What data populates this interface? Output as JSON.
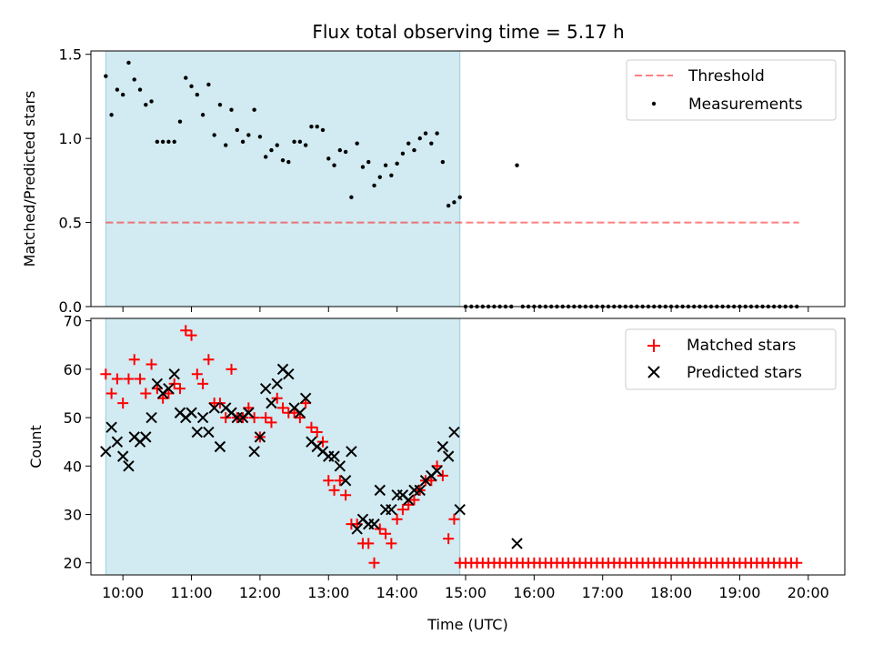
{
  "title": "Flux total observing time = 5.17 h",
  "colors": {
    "shade": "#add8e6",
    "threshold": "#ff0000",
    "measurement": "#000000",
    "matched": "#ff0000",
    "predicted": "#000000"
  },
  "chart_data": [
    {
      "type": "scatter",
      "ylabel": "Matched/Predicted stars",
      "ylim": [
        0,
        1.52
      ],
      "xlim": [
        "09:32",
        "20:32"
      ],
      "yticks": [
        "0.0",
        "0.5",
        "1.0",
        "1.5"
      ],
      "shaded_interval": [
        "09:45",
        "14:55"
      ],
      "legend": "top-right",
      "threshold": {
        "name": "Threshold",
        "value": 0.5,
        "x_range": [
          "09:45",
          "19:52"
        ]
      },
      "series": [
        {
          "name": "Measurements",
          "points": [
            [
              "09:45",
              1.37
            ],
            [
              "09:50",
              1.14
            ],
            [
              "09:55",
              1.29
            ],
            [
              "10:00",
              1.26
            ],
            [
              "10:05",
              1.45
            ],
            [
              "10:10",
              1.35
            ],
            [
              "10:15",
              1.29
            ],
            [
              "10:20",
              1.2
            ],
            [
              "10:25",
              1.22
            ],
            [
              "10:30",
              0.98
            ],
            [
              "10:35",
              0.98
            ],
            [
              "10:40",
              0.98
            ],
            [
              "10:45",
              0.98
            ],
            [
              "10:50",
              1.1
            ],
            [
              "10:55",
              1.36
            ],
            [
              "11:00",
              1.31
            ],
            [
              "11:05",
              1.26
            ],
            [
              "11:10",
              1.14
            ],
            [
              "11:15",
              1.32
            ],
            [
              "11:20",
              1.02
            ],
            [
              "11:25",
              1.2
            ],
            [
              "11:30",
              0.96
            ],
            [
              "11:35",
              1.17
            ],
            [
              "11:40",
              1.05
            ],
            [
              "11:45",
              0.98
            ],
            [
              "11:50",
              1.02
            ],
            [
              "11:55",
              1.17
            ],
            [
              "12:00",
              1.01
            ],
            [
              "12:05",
              0.89
            ],
            [
              "12:10",
              0.93
            ],
            [
              "12:15",
              0.96
            ],
            [
              "12:20",
              0.87
            ],
            [
              "12:25",
              0.86
            ],
            [
              "12:30",
              0.98
            ],
            [
              "12:35",
              0.98
            ],
            [
              "12:40",
              0.96
            ],
            [
              "12:45",
              1.07
            ],
            [
              "12:50",
              1.07
            ],
            [
              "12:55",
              1.05
            ],
            [
              "13:00",
              0.88
            ],
            [
              "13:05",
              0.84
            ],
            [
              "13:10",
              0.93
            ],
            [
              "13:15",
              0.92
            ],
            [
              "13:20",
              0.65
            ],
            [
              "13:25",
              0.97
            ],
            [
              "13:30",
              0.83
            ],
            [
              "13:35",
              0.86
            ],
            [
              "13:40",
              0.72
            ],
            [
              "13:45",
              0.77
            ],
            [
              "13:50",
              0.84
            ],
            [
              "13:55",
              0.78
            ],
            [
              "14:00",
              0.85
            ],
            [
              "14:05",
              0.91
            ],
            [
              "14:10",
              0.97
            ],
            [
              "14:15",
              0.93
            ],
            [
              "14:20",
              1.0
            ],
            [
              "14:25",
              1.03
            ],
            [
              "14:30",
              0.97
            ],
            [
              "14:35",
              1.03
            ],
            [
              "14:40",
              0.86
            ],
            [
              "14:45",
              0.6
            ],
            [
              "14:50",
              0.62
            ],
            [
              "14:55",
              0.65
            ],
            [
              "15:45",
              0.84
            ]
          ],
          "zero_points_from": "15:00",
          "zero_points_to": "19:50",
          "zero_points_step_min": 5,
          "zero_points_skip": [
            "15:45"
          ]
        }
      ]
    },
    {
      "type": "scatter",
      "xlabel": "Time (UTC)",
      "ylabel": "Count",
      "ylim": [
        17.5,
        70.5
      ],
      "xlim": [
        "09:32",
        "20:32"
      ],
      "yticks": [
        "20",
        "30",
        "40",
        "50",
        "60",
        "70"
      ],
      "xticks": [
        "10:00",
        "11:00",
        "12:00",
        "13:00",
        "14:00",
        "15:00",
        "16:00",
        "17:00",
        "18:00",
        "19:00",
        "20:00"
      ],
      "shaded_interval": [
        "09:45",
        "14:55"
      ],
      "legend": "top-right",
      "series": [
        {
          "name": "Matched stars",
          "marker": "+",
          "points": [
            [
              "09:45",
              59
            ],
            [
              "09:50",
              55
            ],
            [
              "09:55",
              58
            ],
            [
              "10:00",
              53
            ],
            [
              "10:05",
              58
            ],
            [
              "10:10",
              62
            ],
            [
              "10:15",
              58
            ],
            [
              "10:20",
              55
            ],
            [
              "10:25",
              61
            ],
            [
              "10:30",
              56
            ],
            [
              "10:35",
              54
            ],
            [
              "10:40",
              55
            ],
            [
              "10:45",
              57
            ],
            [
              "10:50",
              56
            ],
            [
              "10:55",
              68
            ],
            [
              "11:00",
              67
            ],
            [
              "11:05",
              59
            ],
            [
              "11:10",
              57
            ],
            [
              "11:15",
              62
            ],
            [
              "11:20",
              53
            ],
            [
              "11:25",
              53
            ],
            [
              "11:30",
              50
            ],
            [
              "11:35",
              60
            ],
            [
              "11:40",
              50
            ],
            [
              "11:45",
              50
            ],
            [
              "11:50",
              52
            ],
            [
              "11:55",
              50
            ],
            [
              "12:00",
              46
            ],
            [
              "12:05",
              50
            ],
            [
              "12:10",
              49
            ],
            [
              "12:15",
              54
            ],
            [
              "12:20",
              52
            ],
            [
              "12:25",
              51
            ],
            [
              "12:30",
              51
            ],
            [
              "12:35",
              50
            ],
            [
              "12:40",
              53
            ],
            [
              "12:45",
              48
            ],
            [
              "12:50",
              47
            ],
            [
              "12:55",
              45
            ],
            [
              "13:00",
              37
            ],
            [
              "13:05",
              35
            ],
            [
              "13:10",
              37
            ],
            [
              "13:15",
              34
            ],
            [
              "13:20",
              28
            ],
            [
              "13:25",
              28
            ],
            [
              "13:30",
              24
            ],
            [
              "13:35",
              24
            ],
            [
              "13:40",
              20
            ],
            [
              "13:45",
              27
            ],
            [
              "13:50",
              26
            ],
            [
              "13:55",
              24
            ],
            [
              "14:00",
              29
            ],
            [
              "14:05",
              31
            ],
            [
              "14:10",
              32
            ],
            [
              "14:15",
              33
            ],
            [
              "14:20",
              35
            ],
            [
              "14:25",
              37
            ],
            [
              "14:30",
              37
            ],
            [
              "14:35",
              40
            ],
            [
              "14:40",
              38
            ],
            [
              "14:45",
              25
            ],
            [
              "14:50",
              29
            ]
          ],
          "baseline_points_from": "14:55",
          "baseline_points_to": "19:50",
          "baseline_points_step_min": 5,
          "baseline_value": 20
        },
        {
          "name": "Predicted stars",
          "marker": "x",
          "points": [
            [
              "09:45",
              43
            ],
            [
              "09:50",
              48
            ],
            [
              "09:55",
              45
            ],
            [
              "10:00",
              42
            ],
            [
              "10:05",
              40
            ],
            [
              "10:10",
              46
            ],
            [
              "10:15",
              45
            ],
            [
              "10:20",
              46
            ],
            [
              "10:25",
              50
            ],
            [
              "10:30",
              57
            ],
            [
              "10:35",
              55
            ],
            [
              "10:40",
              56
            ],
            [
              "10:45",
              59
            ],
            [
              "10:50",
              51
            ],
            [
              "10:55",
              50
            ],
            [
              "11:00",
              51
            ],
            [
              "11:05",
              47
            ],
            [
              "11:10",
              50
            ],
            [
              "11:15",
              47
            ],
            [
              "11:20",
              52
            ],
            [
              "11:25",
              44
            ],
            [
              "11:30",
              52
            ],
            [
              "11:35",
              51
            ],
            [
              "11:40",
              50
            ],
            [
              "11:45",
              50
            ],
            [
              "11:50",
              51
            ],
            [
              "11:55",
              43
            ],
            [
              "12:00",
              46
            ],
            [
              "12:05",
              56
            ],
            [
              "12:10",
              53
            ],
            [
              "12:15",
              57
            ],
            [
              "12:20",
              60
            ],
            [
              "12:25",
              59
            ],
            [
              "12:30",
              52
            ],
            [
              "12:35",
              51
            ],
            [
              "12:40",
              54
            ],
            [
              "12:45",
              45
            ],
            [
              "12:50",
              44
            ],
            [
              "12:55",
              43
            ],
            [
              "13:00",
              42
            ],
            [
              "13:05",
              42
            ],
            [
              "13:10",
              40
            ],
            [
              "13:15",
              37
            ],
            [
              "13:20",
              43
            ],
            [
              "13:25",
              27
            ],
            [
              "13:30",
              29
            ],
            [
              "13:35",
              28
            ],
            [
              "13:40",
              28
            ],
            [
              "13:45",
              35
            ],
            [
              "13:50",
              31
            ],
            [
              "13:55",
              31
            ],
            [
              "14:00",
              34
            ],
            [
              "14:05",
              34
            ],
            [
              "14:10",
              33
            ],
            [
              "14:15",
              35
            ],
            [
              "14:20",
              35
            ],
            [
              "14:25",
              37
            ],
            [
              "14:30",
              38
            ],
            [
              "14:35",
              39
            ],
            [
              "14:40",
              44
            ],
            [
              "14:45",
              42
            ],
            [
              "14:50",
              47
            ],
            [
              "14:55",
              31
            ],
            [
              "15:45",
              24
            ]
          ]
        }
      ]
    }
  ]
}
